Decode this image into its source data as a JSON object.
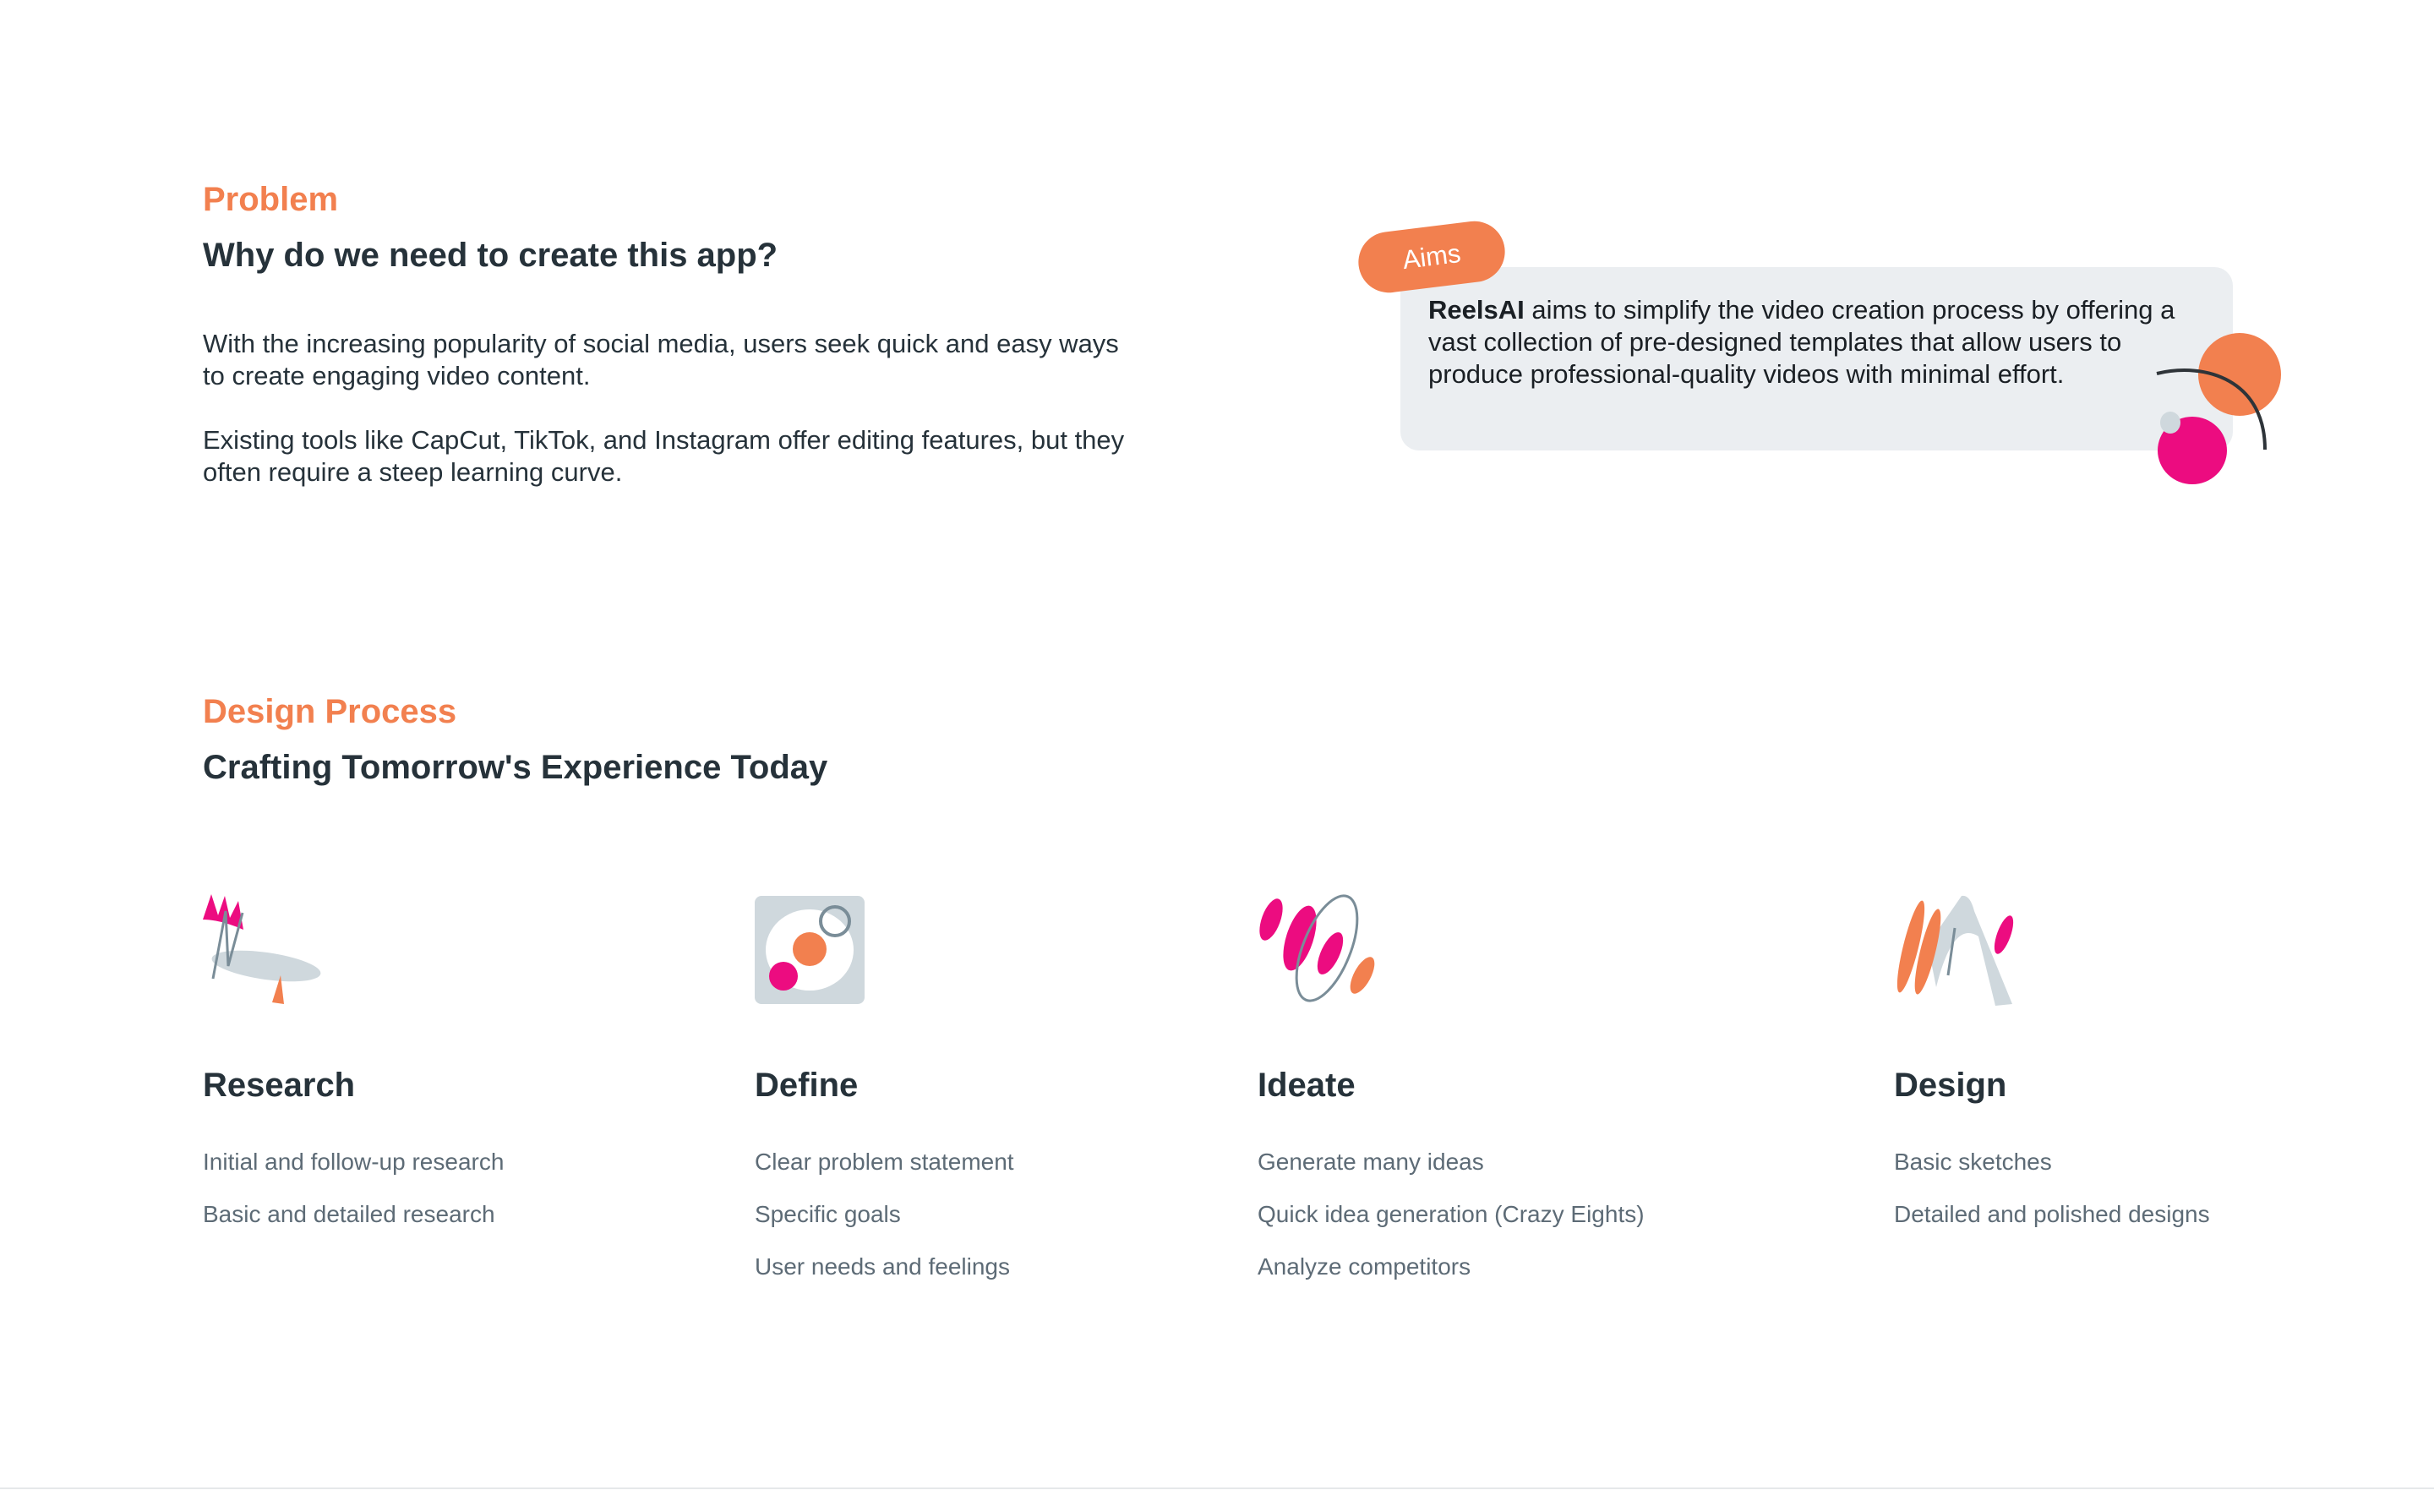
{
  "problem": {
    "eyebrow": "Problem",
    "title": "Why do we need to create this app?",
    "paragraphs": [
      "With the increasing popularity of social media, users seek quick and easy ways to create engaging video content.",
      "Existing tools like CapCut, TikTok, and Instagram offer editing features, but they often require a steep learning curve."
    ]
  },
  "aims": {
    "badge": "Aims",
    "brand": "ReelsAI",
    "text": " aims to simplify the video creation process by offering a vast collection of pre-designed templates that allow users to produce professional-quality videos with minimal effort."
  },
  "design_process": {
    "eyebrow": "Design Process",
    "title": "Crafting Tomorrow's Experience Today",
    "steps": [
      {
        "title": "Research",
        "icon": "research-illustration-icon",
        "items": [
          "Initial and follow-up research",
          "Basic and detailed research"
        ]
      },
      {
        "title": "Define",
        "icon": "define-illustration-icon",
        "items": [
          "Clear problem statement",
          "Specific goals",
          "User needs and feelings"
        ]
      },
      {
        "title": "Ideate",
        "icon": "ideate-illustration-icon",
        "items": [
          "Generate many ideas",
          "Quick idea generation (Crazy Eights)",
          "Analyze competitors"
        ]
      },
      {
        "title": "Design",
        "icon": "design-illustration-icon",
        "items": [
          "Basic sketches",
          "Detailed and polished designs"
        ]
      }
    ]
  },
  "colors": {
    "accent": "#f2804f",
    "pink": "#ec0c80",
    "gray": "#cfd8dd",
    "stroke": "#7a8d98",
    "card": "#ebeef1"
  }
}
